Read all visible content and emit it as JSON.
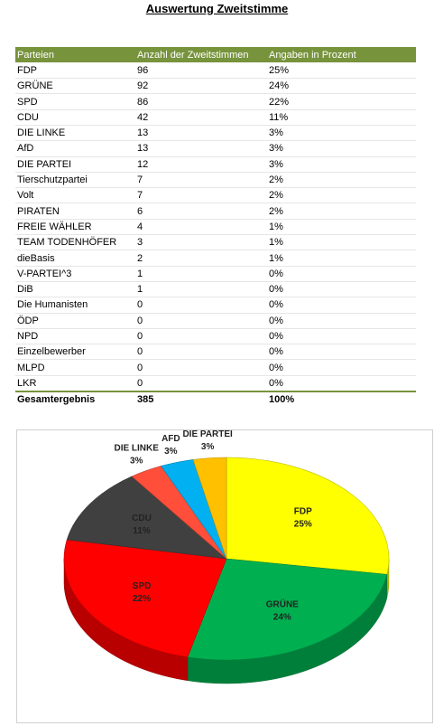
{
  "header": {
    "title": "Auswertung Zweitstimme"
  },
  "table": {
    "columns": [
      "Parteien",
      "Anzahl der Zweitstimmen",
      "Angaben in Prozent"
    ],
    "rows": [
      [
        "FDP",
        "96",
        "25%"
      ],
      [
        "GRÜNE",
        "92",
        "24%"
      ],
      [
        "SPD",
        "86",
        "22%"
      ],
      [
        "CDU",
        "42",
        "11%"
      ],
      [
        "DIE LINKE",
        "13",
        "3%"
      ],
      [
        "AfD",
        "13",
        "3%"
      ],
      [
        "DIE PARTEI",
        "12",
        "3%"
      ],
      [
        "Tierschutzpartei",
        "7",
        "2%"
      ],
      [
        "Volt",
        "7",
        "2%"
      ],
      [
        "PIRATEN",
        "6",
        "2%"
      ],
      [
        "FREIE WÄHLER",
        "4",
        "1%"
      ],
      [
        "TEAM TODENHÖFER",
        "3",
        "1%"
      ],
      [
        "dieBasis",
        "2",
        "1%"
      ],
      [
        "V-PARTEI^3",
        "1",
        "0%"
      ],
      [
        "DiB",
        "1",
        "0%"
      ],
      [
        "Die Humanisten",
        "0",
        "0%"
      ],
      [
        "ÖDP",
        "0",
        "0%"
      ],
      [
        "NPD",
        "0",
        "0%"
      ],
      [
        "Einzelbewerber",
        "0",
        "0%"
      ],
      [
        "MLPD",
        "0",
        "0%"
      ],
      [
        "LKR",
        "0",
        "0%"
      ]
    ],
    "total": [
      "Gesamtergebnis",
      "385",
      "100%"
    ]
  },
  "chart_data": {
    "type": "pie",
    "categories": [
      "FDP",
      "GRÜNE",
      "SPD",
      "CDU",
      "DIE LINKE",
      "AFD",
      "DIE PARTEI"
    ],
    "values": [
      25,
      24,
      22,
      11,
      3,
      3,
      3
    ],
    "value_labels": [
      "25%",
      "24%",
      "22%",
      "11%",
      "3%",
      "3%",
      "3%"
    ],
    "colors": [
      "#ffff00",
      "#00b050",
      "#ff0000",
      "#404040",
      "#ff4f3a",
      "#00b0f0",
      "#ffc000"
    ]
  }
}
